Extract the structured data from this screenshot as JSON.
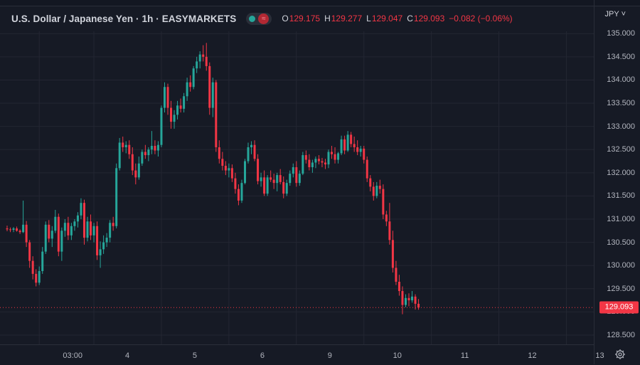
{
  "header": {
    "title": "U.S. Dollar / Japanese Yen · 1h · EASYMARKETS",
    "ohlc": [
      {
        "key": "O",
        "value": "129.175"
      },
      {
        "key": "H",
        "value": "129.277"
      },
      {
        "key": "L",
        "value": "129.047"
      },
      {
        "key": "C",
        "value": "129.093"
      }
    ],
    "change": "−0.082 (−0.06%)",
    "currency": "JPY"
  },
  "colors": {
    "background": "#161a25",
    "up": "#26a69a",
    "down": "#f23645",
    "grid": "#232632"
  },
  "chart_data": {
    "type": "candlestick",
    "y_ticks": [
      "135.000",
      "134.500",
      "134.000",
      "133.500",
      "133.000",
      "132.500",
      "132.000",
      "131.500",
      "131.000",
      "130.500",
      "130.000",
      "129.500",
      "129.000",
      "128.500"
    ],
    "ylim": [
      128.3,
      135.05
    ],
    "x_ticks": [
      {
        "label": "03:00",
        "bar": 10
      },
      {
        "label": "4",
        "bar": 27
      },
      {
        "label": "5",
        "bar": 48
      },
      {
        "label": "6",
        "bar": 69
      },
      {
        "label": "9",
        "bar": 90
      },
      {
        "label": "10",
        "bar": 111
      },
      {
        "label": "11",
        "bar": 132
      },
      {
        "label": "12",
        "bar": 153
      },
      {
        "label": "13",
        "bar": 174
      }
    ],
    "last_price": "129.093",
    "ohlc": [
      [
        130.8,
        130.86,
        130.74,
        130.78
      ],
      [
        130.78,
        130.82,
        130.72,
        130.77
      ],
      [
        130.77,
        130.83,
        130.72,
        130.8
      ],
      [
        130.8,
        130.84,
        130.73,
        130.75
      ],
      [
        130.75,
        130.78,
        130.68,
        130.72
      ],
      [
        130.72,
        131.4,
        130.7,
        130.88
      ],
      [
        130.88,
        130.96,
        130.4,
        130.5
      ],
      [
        130.5,
        130.55,
        129.95,
        130.1
      ],
      [
        130.1,
        130.2,
        129.7,
        129.82
      ],
      [
        129.82,
        129.92,
        129.55,
        129.63
      ],
      [
        129.63,
        129.98,
        129.58,
        129.88
      ],
      [
        129.88,
        130.4,
        129.82,
        130.3
      ],
      [
        130.3,
        130.95,
        130.25,
        130.88
      ],
      [
        130.88,
        130.98,
        130.5,
        130.58
      ],
      [
        130.58,
        130.85,
        130.4,
        130.75
      ],
      [
        130.75,
        131.2,
        130.7,
        131.05
      ],
      [
        131.05,
        131.12,
        130.2,
        130.3
      ],
      [
        130.3,
        130.82,
        130.1,
        130.75
      ],
      [
        130.75,
        131.0,
        130.62,
        130.92
      ],
      [
        130.92,
        131.05,
        130.55,
        130.65
      ],
      [
        130.65,
        130.92,
        130.55,
        130.85
      ],
      [
        130.85,
        131.0,
        130.75,
        130.95
      ],
      [
        130.95,
        131.15,
        130.82,
        131.08
      ],
      [
        131.08,
        131.45,
        131.0,
        131.35
      ],
      [
        131.35,
        131.42,
        130.45,
        130.6
      ],
      [
        130.6,
        131.05,
        130.52,
        130.95
      ],
      [
        130.95,
        131.1,
        130.55,
        130.65
      ],
      [
        130.65,
        130.92,
        130.5,
        130.85
      ],
      [
        130.85,
        130.95,
        130.12,
        130.22
      ],
      [
        130.22,
        130.52,
        129.95,
        130.35
      ],
      [
        130.35,
        130.65,
        130.25,
        130.5
      ],
      [
        130.5,
        130.7,
        130.4,
        130.6
      ],
      [
        130.6,
        130.98,
        130.5,
        130.92
      ],
      [
        130.92,
        131.05,
        130.75,
        130.85
      ],
      [
        130.85,
        132.2,
        130.8,
        132.1
      ],
      [
        132.1,
        132.75,
        132.05,
        132.65
      ],
      [
        132.65,
        132.78,
        132.45,
        132.55
      ],
      [
        132.55,
        132.68,
        132.42,
        132.6
      ],
      [
        132.6,
        132.7,
        132.3,
        132.4
      ],
      [
        132.4,
        132.55,
        131.95,
        132.05
      ],
      [
        132.05,
        132.2,
        131.75,
        131.9
      ],
      [
        131.9,
        132.35,
        131.85,
        132.2
      ],
      [
        132.2,
        132.5,
        132.15,
        132.45
      ],
      [
        132.45,
        132.6,
        132.3,
        132.38
      ],
      [
        132.38,
        132.55,
        132.25,
        132.5
      ],
      [
        132.5,
        132.9,
        132.4,
        132.58
      ],
      [
        132.58,
        132.7,
        132.4,
        132.48
      ],
      [
        132.48,
        132.68,
        132.35,
        132.6
      ],
      [
        132.6,
        133.45,
        132.55,
        133.4
      ],
      [
        133.4,
        133.95,
        133.3,
        133.85
      ],
      [
        133.85,
        133.92,
        133.25,
        133.4
      ],
      [
        133.4,
        133.55,
        132.95,
        133.1
      ],
      [
        133.1,
        133.35,
        132.95,
        133.25
      ],
      [
        133.25,
        133.55,
        133.15,
        133.45
      ],
      [
        133.45,
        133.6,
        133.3,
        133.38
      ],
      [
        133.38,
        133.72,
        133.3,
        133.65
      ],
      [
        133.65,
        134.05,
        133.55,
        133.95
      ],
      [
        133.95,
        134.1,
        133.75,
        133.85
      ],
      [
        133.85,
        134.3,
        133.8,
        134.25
      ],
      [
        134.25,
        134.5,
        134.15,
        134.4
      ],
      [
        134.4,
        134.62,
        134.25,
        134.55
      ],
      [
        134.55,
        134.75,
        134.4,
        134.5
      ],
      [
        134.5,
        134.8,
        134.2,
        134.3
      ],
      [
        134.3,
        134.38,
        133.25,
        133.4
      ],
      [
        133.4,
        134.05,
        133.2,
        133.95
      ],
      [
        133.95,
        134.0,
        132.45,
        132.55
      ],
      [
        132.55,
        132.7,
        132.2,
        132.3
      ],
      [
        132.3,
        132.45,
        132.05,
        132.15
      ],
      [
        132.15,
        132.25,
        131.95,
        132.05
      ],
      [
        132.05,
        132.2,
        131.9,
        132.1
      ],
      [
        132.1,
        132.18,
        131.8,
        131.88
      ],
      [
        131.88,
        132.0,
        131.55,
        131.65
      ],
      [
        131.65,
        131.75,
        131.3,
        131.4
      ],
      [
        131.4,
        131.85,
        131.35,
        131.78
      ],
      [
        131.78,
        132.3,
        131.75,
        132.25
      ],
      [
        132.25,
        132.65,
        132.2,
        132.55
      ],
      [
        132.55,
        132.68,
        132.4,
        132.6
      ],
      [
        132.6,
        132.7,
        132.25,
        132.3
      ],
      [
        132.3,
        132.4,
        131.75,
        131.82
      ],
      [
        131.82,
        132.0,
        131.7,
        131.9
      ],
      [
        131.9,
        132.05,
        131.5,
        131.55
      ],
      [
        131.55,
        131.95,
        131.5,
        131.9
      ],
      [
        131.9,
        132.05,
        131.8,
        131.85
      ],
      [
        131.85,
        131.98,
        131.65,
        131.78
      ],
      [
        131.78,
        132.0,
        131.6,
        131.95
      ],
      [
        131.95,
        132.08,
        131.75,
        131.8
      ],
      [
        131.8,
        131.92,
        131.45,
        131.55
      ],
      [
        131.55,
        131.85,
        131.5,
        131.78
      ],
      [
        131.78,
        132.05,
        131.72,
        131.98
      ],
      [
        131.98,
        132.2,
        131.9,
        132.12
      ],
      [
        132.12,
        132.25,
        131.7,
        131.78
      ],
      [
        131.78,
        132.05,
        131.72,
        131.98
      ],
      [
        131.98,
        132.45,
        131.95,
        132.38
      ],
      [
        132.38,
        132.48,
        132.2,
        132.28
      ],
      [
        132.28,
        132.4,
        132.05,
        132.12
      ],
      [
        132.12,
        132.28,
        132.0,
        132.22
      ],
      [
        132.22,
        132.35,
        132.1,
        132.3
      ],
      [
        132.3,
        132.38,
        132.18,
        132.25
      ],
      [
        132.25,
        132.32,
        132.12,
        132.22
      ],
      [
        132.22,
        132.3,
        132.08,
        132.18
      ],
      [
        132.18,
        132.5,
        132.1,
        132.45
      ],
      [
        132.45,
        132.58,
        132.3,
        132.4
      ],
      [
        132.4,
        132.55,
        132.2,
        132.28
      ],
      [
        132.28,
        132.45,
        132.2,
        132.42
      ],
      [
        132.42,
        132.8,
        132.38,
        132.72
      ],
      [
        132.72,
        132.8,
        132.4,
        132.48
      ],
      [
        132.48,
        132.9,
        132.45,
        132.82
      ],
      [
        132.82,
        132.88,
        132.55,
        132.62
      ],
      [
        132.62,
        132.78,
        132.45,
        132.55
      ],
      [
        132.55,
        132.7,
        132.38,
        132.45
      ],
      [
        132.45,
        132.58,
        132.35,
        132.52
      ],
      [
        132.52,
        132.58,
        132.2,
        132.28
      ],
      [
        132.28,
        132.35,
        131.8,
        131.88
      ],
      [
        131.88,
        131.95,
        131.6,
        131.7
      ],
      [
        131.7,
        131.8,
        131.4,
        131.5
      ],
      [
        131.5,
        131.8,
        131.45,
        131.72
      ],
      [
        131.72,
        131.85,
        131.55,
        131.65
      ],
      [
        131.65,
        131.75,
        131.0,
        131.1
      ],
      [
        131.1,
        131.18,
        130.85,
        130.95
      ],
      [
        130.95,
        131.35,
        130.45,
        130.55
      ],
      [
        130.55,
        130.75,
        129.85,
        129.95
      ],
      [
        129.95,
        130.1,
        129.58,
        129.65
      ],
      [
        129.65,
        129.8,
        129.35,
        129.45
      ],
      [
        129.45,
        129.55,
        128.95,
        129.15
      ],
      [
        129.15,
        129.38,
        129.1,
        129.3
      ],
      [
        129.3,
        129.4,
        129.12,
        129.25
      ],
      [
        129.25,
        129.45,
        129.2,
        129.33
      ],
      [
        129.33,
        129.38,
        129.05,
        129.175
      ],
      [
        129.175,
        129.277,
        129.047,
        129.093
      ]
    ]
  }
}
